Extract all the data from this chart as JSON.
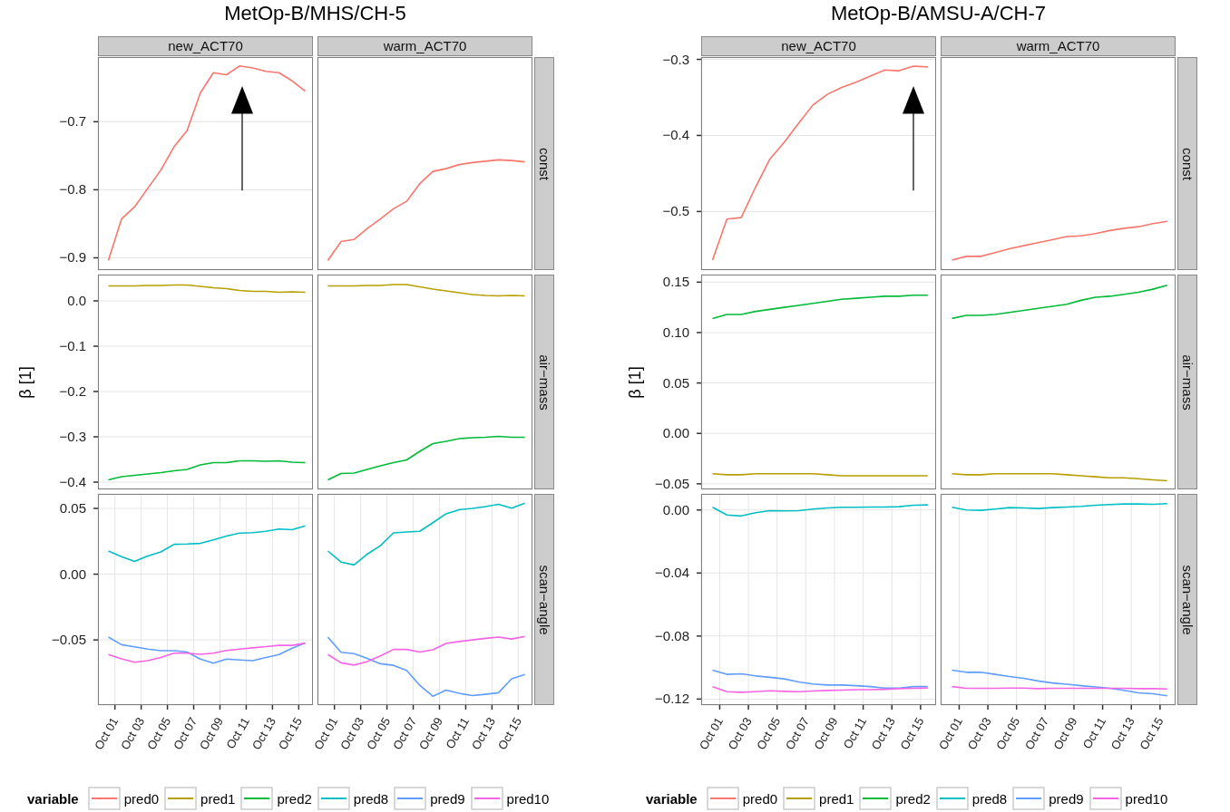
{
  "chart_data": [
    {
      "type": "line",
      "title": "new_ACT70",
      "annotations": [
        "MetOp-B/MHS/CH-5"
      ],
      "x": [
        "--09-30T12:00",
        "--10-01T12:00",
        "--10-02T12:00",
        "--10-03T12:00",
        "--10-04T12:00",
        "--10-05T12:00",
        "--10-06T12:00",
        "--10-07T12:00",
        "--10-08T12:00",
        "--10-09T12:00",
        "--10-10T12:00",
        "--10-11T12:00",
        "--10-12T12:00",
        "--10-13T12:00",
        "--10-14T12:00",
        "--10-15T12:00"
      ],
      "xlim": [
        "--09-29T17:00",
        "--10-16T02:00"
      ],
      "xticks": [
        {
          "value": "--10-01",
          "label": "Oct 01"
        },
        {
          "value": "--10-03",
          "label": "Oct 03"
        },
        {
          "value": "--10-05",
          "label": "Oct 05"
        },
        {
          "value": "--10-07",
          "label": "Oct 07"
        },
        {
          "value": "--10-09",
          "label": "Oct 09"
        },
        {
          "value": "--10-11",
          "label": "Oct 11"
        },
        {
          "value": "--10-13",
          "label": "Oct 13"
        },
        {
          "value": "--10-15",
          "label": "Oct 15"
        }
      ],
      "ylim": [
        -0.918,
        -0.605
      ],
      "yticks": [
        {
          "value": -0.9,
          "label": "−0.9"
        },
        {
          "value": -0.8,
          "label": "−0.8"
        },
        {
          "value": -0.7,
          "label": "−0.7"
        }
      ],
      "grid": true,
      "tick_labels": "y",
      "series": [
        {
          "name": "pred0",
          "color": "#f8766d",
          "values": [
            -0.904,
            -0.843,
            -0.825,
            -0.798,
            -0.771,
            -0.737,
            -0.713,
            -0.658,
            -0.628,
            -0.631,
            -0.618,
            -0.621,
            -0.626,
            -0.628,
            -0.64,
            -0.655
          ]
        }
      ],
      "legend": "bottom"
    },
    {
      "type": "line",
      "title": "warm_ACT70",
      "y2label": "const",
      "x": [
        "--09-30T12:00",
        "--10-01T12:00",
        "--10-02T12:00",
        "--10-03T12:00",
        "--10-04T12:00",
        "--10-05T12:00",
        "--10-06T12:00",
        "--10-07T12:00",
        "--10-08T12:00",
        "--10-09T12:00",
        "--10-10T12:00",
        "--10-11T12:00",
        "--10-12T12:00",
        "--10-13T12:00",
        "--10-14T12:00",
        "--10-15T12:00"
      ],
      "xlim": [
        "--09-29T17:00",
        "--10-16T02:00"
      ],
      "xticks": [
        {
          "value": "--10-01",
          "label": "Oct 01"
        },
        {
          "value": "--10-03",
          "label": "Oct 03"
        },
        {
          "value": "--10-05",
          "label": "Oct 05"
        },
        {
          "value": "--10-07",
          "label": "Oct 07"
        },
        {
          "value": "--10-09",
          "label": "Oct 09"
        },
        {
          "value": "--10-11",
          "label": "Oct 11"
        },
        {
          "value": "--10-13",
          "label": "Oct 13"
        },
        {
          "value": "--10-15",
          "label": "Oct 15"
        }
      ],
      "ylim": [
        -0.918,
        -0.605
      ],
      "yticks": [
        {
          "value": -0.9,
          "label": "−0.9"
        },
        {
          "value": -0.8,
          "label": "−0.8"
        },
        {
          "value": -0.7,
          "label": "−0.7"
        }
      ],
      "grid": true,
      "tick_labels": false,
      "series": [
        {
          "name": "pred0",
          "color": "#f8766d",
          "values": [
            -0.904,
            -0.876,
            -0.873,
            -0.857,
            -0.843,
            -0.828,
            -0.817,
            -0.791,
            -0.773,
            -0.769,
            -0.763,
            -0.76,
            -0.758,
            -0.756,
            -0.757,
            -0.759
          ]
        }
      ],
      "legend": "bottom"
    },
    {
      "type": "line",
      "ylabel": "β [1]",
      "x": [
        "--09-30T12:00",
        "--10-01T12:00",
        "--10-02T12:00",
        "--10-03T12:00",
        "--10-04T12:00",
        "--10-05T12:00",
        "--10-06T12:00",
        "--10-07T12:00",
        "--10-08T12:00",
        "--10-09T12:00",
        "--10-10T12:00",
        "--10-11T12:00",
        "--10-12T12:00",
        "--10-13T12:00",
        "--10-14T12:00",
        "--10-15T12:00"
      ],
      "xlim": [
        "--09-29T17:00",
        "--10-16T02:00"
      ],
      "xticks": [
        {
          "value": "--10-01",
          "label": "Oct 01"
        },
        {
          "value": "--10-03",
          "label": "Oct 03"
        },
        {
          "value": "--10-05",
          "label": "Oct 05"
        },
        {
          "value": "--10-07",
          "label": "Oct 07"
        },
        {
          "value": "--10-09",
          "label": "Oct 09"
        },
        {
          "value": "--10-11",
          "label": "Oct 11"
        },
        {
          "value": "--10-13",
          "label": "Oct 13"
        },
        {
          "value": "--10-15",
          "label": "Oct 15"
        }
      ],
      "ylim": [
        -0.416,
        0.058
      ],
      "yticks": [
        {
          "value": -0.4,
          "label": "−0.4"
        },
        {
          "value": -0.3,
          "label": "−0.3"
        },
        {
          "value": -0.2,
          "label": "−0.2"
        },
        {
          "value": -0.1,
          "label": "−0.1"
        },
        {
          "value": 0,
          "label": "0.0"
        }
      ],
      "grid": true,
      "tick_labels": "y",
      "series": [
        {
          "name": "pred1",
          "color": "#b79f00",
          "values": [
            0.033,
            0.033,
            0.033,
            0.034,
            0.034,
            0.035,
            0.035,
            0.032,
            0.029,
            0.027,
            0.023,
            0.021,
            0.021,
            0.019,
            0.02,
            0.019
          ]
        },
        {
          "name": "pred2",
          "color": "#00ba38",
          "values": [
            -0.395,
            -0.388,
            -0.385,
            -0.382,
            -0.379,
            -0.375,
            -0.372,
            -0.362,
            -0.357,
            -0.357,
            -0.353,
            -0.353,
            -0.354,
            -0.353,
            -0.356,
            -0.357
          ]
        }
      ],
      "legend": "bottom"
    },
    {
      "type": "line",
      "y2label": "air−mass",
      "x": [
        "--09-30T12:00",
        "--10-01T12:00",
        "--10-02T12:00",
        "--10-03T12:00",
        "--10-04T12:00",
        "--10-05T12:00",
        "--10-06T12:00",
        "--10-07T12:00",
        "--10-08T12:00",
        "--10-09T12:00",
        "--10-10T12:00",
        "--10-11T12:00",
        "--10-12T12:00",
        "--10-13T12:00",
        "--10-14T12:00",
        "--10-15T12:00"
      ],
      "xlim": [
        "--09-29T17:00",
        "--10-16T02:00"
      ],
      "xticks": [
        {
          "value": "--10-01",
          "label": "Oct 01"
        },
        {
          "value": "--10-03",
          "label": "Oct 03"
        },
        {
          "value": "--10-05",
          "label": "Oct 05"
        },
        {
          "value": "--10-07",
          "label": "Oct 07"
        },
        {
          "value": "--10-09",
          "label": "Oct 09"
        },
        {
          "value": "--10-11",
          "label": "Oct 11"
        },
        {
          "value": "--10-13",
          "label": "Oct 13"
        },
        {
          "value": "--10-15",
          "label": "Oct 15"
        }
      ],
      "ylim": [
        -0.416,
        0.058
      ],
      "yticks": [
        {
          "value": -0.4,
          "label": "−0.4"
        },
        {
          "value": -0.3,
          "label": "−0.3"
        },
        {
          "value": -0.2,
          "label": "−0.2"
        },
        {
          "value": -0.1,
          "label": "−0.1"
        },
        {
          "value": 0,
          "label": "0.0"
        }
      ],
      "grid": true,
      "tick_labels": false,
      "series": [
        {
          "name": "pred1",
          "color": "#b79f00",
          "values": [
            0.033,
            0.033,
            0.033,
            0.034,
            0.034,
            0.036,
            0.036,
            0.031,
            0.026,
            0.022,
            0.018,
            0.014,
            0.012,
            0.011,
            0.012,
            0.011
          ]
        },
        {
          "name": "pred2",
          "color": "#00ba38",
          "values": [
            -0.395,
            -0.381,
            -0.38,
            -0.372,
            -0.364,
            -0.357,
            -0.351,
            -0.332,
            -0.315,
            -0.31,
            -0.304,
            -0.302,
            -0.301,
            -0.299,
            -0.301,
            -0.301
          ]
        }
      ],
      "legend": "bottom"
    },
    {
      "type": "line",
      "legend": "bottom",
      "legend_title": "variable",
      "x": [
        "--09-30T12:00",
        "--10-01T12:00",
        "--10-02T12:00",
        "--10-03T12:00",
        "--10-04T12:00",
        "--10-05T12:00",
        "--10-06T12:00",
        "--10-07T12:00",
        "--10-08T12:00",
        "--10-09T12:00",
        "--10-10T12:00",
        "--10-11T12:00",
        "--10-12T12:00",
        "--10-13T12:00",
        "--10-14T12:00",
        "--10-15T12:00"
      ],
      "xlim": [
        "--09-29T17:00",
        "--10-16T02:00"
      ],
      "xticks": [
        {
          "value": "--10-01",
          "label": "Oct 01"
        },
        {
          "value": "--10-03",
          "label": "Oct 03"
        },
        {
          "value": "--10-05",
          "label": "Oct 05"
        },
        {
          "value": "--10-07",
          "label": "Oct 07"
        },
        {
          "value": "--10-09",
          "label": "Oct 09"
        },
        {
          "value": "--10-11",
          "label": "Oct 11"
        },
        {
          "value": "--10-13",
          "label": "Oct 13"
        },
        {
          "value": "--10-15",
          "label": "Oct 15"
        }
      ],
      "ylim": [
        -0.0995,
        0.061
      ],
      "yticks": [
        {
          "value": -0.05,
          "label": "−0.05"
        },
        {
          "value": 0,
          "label": "0.00"
        },
        {
          "value": 0.05,
          "label": "0.05"
        }
      ],
      "grid": true,
      "series": [
        {
          "name": "pred8",
          "color": "#00bfc4",
          "values": [
            0.0176,
            0.0133,
            0.0097,
            0.0138,
            0.0169,
            0.0227,
            0.0229,
            0.0234,
            0.0261,
            0.029,
            0.0312,
            0.0316,
            0.0326,
            0.0343,
            0.0338,
            0.0367
          ]
        },
        {
          "name": "pred9",
          "color": "#619cff",
          "values": [
            -0.0478,
            -0.0536,
            -0.0553,
            -0.057,
            -0.0582,
            -0.0582,
            -0.0592,
            -0.0645,
            -0.0676,
            -0.0645,
            -0.0652,
            -0.0657,
            -0.0633,
            -0.0611,
            -0.0563,
            -0.0524
          ]
        },
        {
          "name": "pred10",
          "color": "#f564e3",
          "values": [
            -0.0611,
            -0.0643,
            -0.0669,
            -0.0657,
            -0.0633,
            -0.0601,
            -0.0601,
            -0.0609,
            -0.0601,
            -0.058,
            -0.057,
            -0.056,
            -0.0551,
            -0.0541,
            -0.0541,
            -0.0524
          ]
        }
      ]
    },
    {
      "type": "line",
      "y2label": "scan−angle",
      "x": [
        "--09-30T12:00",
        "--10-01T12:00",
        "--10-02T12:00",
        "--10-03T12:00",
        "--10-04T12:00",
        "--10-05T12:00",
        "--10-06T12:00",
        "--10-07T12:00",
        "--10-08T12:00",
        "--10-09T12:00",
        "--10-10T12:00",
        "--10-11T12:00",
        "--10-12T12:00",
        "--10-13T12:00",
        "--10-14T12:00",
        "--10-15T12:00"
      ],
      "xlim": [
        "--09-29T17:00",
        "--10-16T02:00"
      ],
      "xticks": [
        {
          "value": "--10-01",
          "label": "Oct 01"
        },
        {
          "value": "--10-03",
          "label": "Oct 03"
        },
        {
          "value": "--10-05",
          "label": "Oct 05"
        },
        {
          "value": "--10-07",
          "label": "Oct 07"
        },
        {
          "value": "--10-09",
          "label": "Oct 09"
        },
        {
          "value": "--10-11",
          "label": "Oct 11"
        },
        {
          "value": "--10-13",
          "label": "Oct 13"
        },
        {
          "value": "--10-15",
          "label": "Oct 15"
        }
      ],
      "ylim": [
        -0.0995,
        0.061
      ],
      "yticks": [
        {
          "value": -0.05,
          "label": "−0.05"
        },
        {
          "value": 0,
          "label": "0.00"
        },
        {
          "value": 0.05,
          "label": "0.05"
        }
      ],
      "grid": true,
      "tick_labels": "x",
      "series": [
        {
          "name": "pred8",
          "color": "#00bfc4",
          "values": [
            0.0176,
            0.0092,
            0.007,
            0.0152,
            0.0217,
            0.0314,
            0.0321,
            0.0326,
            0.0391,
            0.0459,
            0.049,
            0.05,
            0.0514,
            0.0531,
            0.0502,
            0.0539
          ]
        },
        {
          "name": "pred9",
          "color": "#619cff",
          "values": [
            -0.0478,
            -0.0594,
            -0.0604,
            -0.064,
            -0.0681,
            -0.0693,
            -0.0732,
            -0.0845,
            -0.0928,
            -0.0882,
            -0.0906,
            -0.0923,
            -0.0913,
            -0.0901,
            -0.0795,
            -0.0763
          ]
        },
        {
          "name": "pred10",
          "color": "#f564e3",
          "values": [
            -0.0611,
            -0.0674,
            -0.0691,
            -0.0664,
            -0.0621,
            -0.0572,
            -0.0572,
            -0.0592,
            -0.0575,
            -0.0527,
            -0.0512,
            -0.05,
            -0.0488,
            -0.0478,
            -0.0493,
            -0.0473
          ]
        }
      ],
      "legend": "bottom"
    },
    {
      "type": "line",
      "title": "new_ACT70",
      "annotations": [
        "MetOp-B/AMSU-A/CH-7"
      ],
      "x": [
        "--09-30T12:00",
        "--10-01T12:00",
        "--10-02T12:00",
        "--10-03T12:00",
        "--10-04T12:00",
        "--10-05T12:00",
        "--10-06T12:00",
        "--10-07T12:00",
        "--10-08T12:00",
        "--10-09T12:00",
        "--10-10T12:00",
        "--10-11T12:00",
        "--10-12T12:00",
        "--10-13T12:00",
        "--10-14T12:00",
        "--10-15T12:00"
      ],
      "xlim": [
        "--09-29T17:00",
        "--10-16T02:00"
      ],
      "xticks": [
        {
          "value": "--10-01",
          "label": "Oct 01"
        },
        {
          "value": "--10-03",
          "label": "Oct 03"
        },
        {
          "value": "--10-05",
          "label": "Oct 05"
        },
        {
          "value": "--10-07",
          "label": "Oct 07"
        },
        {
          "value": "--10-09",
          "label": "Oct 09"
        },
        {
          "value": "--10-11",
          "label": "Oct 11"
        },
        {
          "value": "--10-13",
          "label": "Oct 13"
        },
        {
          "value": "--10-15",
          "label": "Oct 15"
        }
      ],
      "ylim": [
        -0.577,
        -0.297
      ],
      "yticks": [
        {
          "value": -0.5,
          "label": "−0.5"
        },
        {
          "value": -0.4,
          "label": "−0.4"
        },
        {
          "value": -0.3,
          "label": "−0.3"
        }
      ],
      "grid": true,
      "tick_labels": "y",
      "series": [
        {
          "name": "pred0",
          "color": "#f8766d",
          "values": [
            -0.564,
            -0.51,
            -0.508,
            -0.468,
            -0.431,
            -0.409,
            -0.384,
            -0.36,
            -0.346,
            -0.337,
            -0.33,
            -0.322,
            -0.314,
            -0.315,
            -0.309,
            -0.31
          ]
        }
      ],
      "legend": "bottom"
    },
    {
      "type": "line",
      "title": "warm_ACT70",
      "y2label": "const",
      "x": [
        "--09-30T12:00",
        "--10-01T12:00",
        "--10-02T12:00",
        "--10-03T12:00",
        "--10-04T12:00",
        "--10-05T12:00",
        "--10-06T12:00",
        "--10-07T12:00",
        "--10-08T12:00",
        "--10-09T12:00",
        "--10-10T12:00",
        "--10-11T12:00",
        "--10-12T12:00",
        "--10-13T12:00",
        "--10-14T12:00",
        "--10-15T12:00"
      ],
      "xlim": [
        "--09-29T17:00",
        "--10-16T02:00"
      ],
      "xticks": [
        {
          "value": "--10-01",
          "label": "Oct 01"
        },
        {
          "value": "--10-03",
          "label": "Oct 03"
        },
        {
          "value": "--10-05",
          "label": "Oct 05"
        },
        {
          "value": "--10-07",
          "label": "Oct 07"
        },
        {
          "value": "--10-09",
          "label": "Oct 09"
        },
        {
          "value": "--10-11",
          "label": "Oct 11"
        },
        {
          "value": "--10-13",
          "label": "Oct 13"
        },
        {
          "value": "--10-15",
          "label": "Oct 15"
        }
      ],
      "ylim": [
        -0.577,
        -0.297
      ],
      "yticks": [
        {
          "value": -0.5,
          "label": "−0.5"
        },
        {
          "value": -0.4,
          "label": "−0.4"
        },
        {
          "value": -0.3,
          "label": "−0.3"
        }
      ],
      "grid": true,
      "tick_labels": false,
      "series": [
        {
          "name": "pred0",
          "color": "#f8766d",
          "values": [
            -0.564,
            -0.559,
            -0.559,
            -0.554,
            -0.549,
            -0.545,
            -0.541,
            -0.537,
            -0.533,
            -0.532,
            -0.529,
            -0.525,
            -0.522,
            -0.52,
            -0.516,
            -0.513
          ]
        }
      ],
      "legend": "bottom"
    },
    {
      "type": "line",
      "ylabel": "β [1]",
      "x": [
        "--09-30T12:00",
        "--10-01T12:00",
        "--10-02T12:00",
        "--10-03T12:00",
        "--10-04T12:00",
        "--10-05T12:00",
        "--10-06T12:00",
        "--10-07T12:00",
        "--10-08T12:00",
        "--10-09T12:00",
        "--10-10T12:00",
        "--10-11T12:00",
        "--10-12T12:00",
        "--10-13T12:00",
        "--10-14T12:00",
        "--10-15T12:00"
      ],
      "xlim": [
        "--09-29T17:00",
        "--10-16T02:00"
      ],
      "xticks": [
        {
          "value": "--10-01",
          "label": "Oct 01"
        },
        {
          "value": "--10-03",
          "label": "Oct 03"
        },
        {
          "value": "--10-05",
          "label": "Oct 05"
        },
        {
          "value": "--10-07",
          "label": "Oct 07"
        },
        {
          "value": "--10-09",
          "label": "Oct 09"
        },
        {
          "value": "--10-11",
          "label": "Oct 11"
        },
        {
          "value": "--10-13",
          "label": "Oct 13"
        },
        {
          "value": "--10-15",
          "label": "Oct 15"
        }
      ],
      "ylim": [
        -0.0555,
        0.1575
      ],
      "yticks": [
        {
          "value": -0.05,
          "label": "−0.05"
        },
        {
          "value": 0,
          "label": "0.00"
        },
        {
          "value": 0.05,
          "label": "0.05"
        },
        {
          "value": 0.1,
          "label": "0.10"
        },
        {
          "value": 0.15,
          "label": "0.15"
        }
      ],
      "grid": true,
      "tick_labels": "y",
      "series": [
        {
          "name": "pred1",
          "color": "#b79f00",
          "values": [
            -0.04,
            -0.041,
            -0.041,
            -0.04,
            -0.04,
            -0.04,
            -0.04,
            -0.04,
            -0.041,
            -0.042,
            -0.042,
            -0.042,
            -0.042,
            -0.042,
            -0.042,
            -0.042
          ]
        },
        {
          "name": "pred2",
          "color": "#00ba38",
          "values": [
            0.114,
            0.118,
            0.118,
            0.121,
            0.123,
            0.125,
            0.127,
            0.129,
            0.131,
            0.133,
            0.134,
            0.135,
            0.136,
            0.136,
            0.137,
            0.137
          ]
        }
      ],
      "legend": "bottom"
    },
    {
      "type": "line",
      "y2label": "air−mass",
      "x": [
        "--09-30T12:00",
        "--10-01T12:00",
        "--10-02T12:00",
        "--10-03T12:00",
        "--10-04T12:00",
        "--10-05T12:00",
        "--10-06T12:00",
        "--10-07T12:00",
        "--10-08T12:00",
        "--10-09T12:00",
        "--10-10T12:00",
        "--10-11T12:00",
        "--10-12T12:00",
        "--10-13T12:00",
        "--10-14T12:00",
        "--10-15T12:00"
      ],
      "xlim": [
        "--09-29T17:00",
        "--10-16T02:00"
      ],
      "xticks": [
        {
          "value": "--10-01",
          "label": "Oct 01"
        },
        {
          "value": "--10-03",
          "label": "Oct 03"
        },
        {
          "value": "--10-05",
          "label": "Oct 05"
        },
        {
          "value": "--10-07",
          "label": "Oct 07"
        },
        {
          "value": "--10-09",
          "label": "Oct 09"
        },
        {
          "value": "--10-11",
          "label": "Oct 11"
        },
        {
          "value": "--10-13",
          "label": "Oct 13"
        },
        {
          "value": "--10-15",
          "label": "Oct 15"
        }
      ],
      "ylim": [
        -0.0555,
        0.1575
      ],
      "yticks": [
        {
          "value": -0.05,
          "label": "−0.05"
        },
        {
          "value": 0,
          "label": "0.00"
        },
        {
          "value": 0.05,
          "label": "0.05"
        },
        {
          "value": 0.1,
          "label": "0.10"
        },
        {
          "value": 0.15,
          "label": "0.15"
        }
      ],
      "grid": true,
      "tick_labels": false,
      "series": [
        {
          "name": "pred1",
          "color": "#b79f00",
          "values": [
            -0.04,
            -0.041,
            -0.041,
            -0.04,
            -0.04,
            -0.04,
            -0.04,
            -0.04,
            -0.041,
            -0.042,
            -0.043,
            -0.044,
            -0.044,
            -0.045,
            -0.046,
            -0.047
          ]
        },
        {
          "name": "pred2",
          "color": "#00ba38",
          "values": [
            0.114,
            0.117,
            0.117,
            0.118,
            0.12,
            0.122,
            0.124,
            0.126,
            0.128,
            0.132,
            0.135,
            0.136,
            0.138,
            0.14,
            0.143,
            0.147
          ]
        }
      ],
      "legend": "bottom"
    },
    {
      "type": "line",
      "legend": "bottom",
      "legend_title": "variable",
      "x": [
        "--09-30T12:00",
        "--10-01T12:00",
        "--10-02T12:00",
        "--10-03T12:00",
        "--10-04T12:00",
        "--10-05T12:00",
        "--10-06T12:00",
        "--10-07T12:00",
        "--10-08T12:00",
        "--10-09T12:00",
        "--10-10T12:00",
        "--10-11T12:00",
        "--10-12T12:00",
        "--10-13T12:00",
        "--10-14T12:00",
        "--10-15T12:00"
      ],
      "xlim": [
        "--09-29T17:00",
        "--10-16T02:00"
      ],
      "xticks": [
        {
          "value": "--10-01",
          "label": "Oct 01"
        },
        {
          "value": "--10-03",
          "label": "Oct 03"
        },
        {
          "value": "--10-05",
          "label": "Oct 05"
        },
        {
          "value": "--10-07",
          "label": "Oct 07"
        },
        {
          "value": "--10-09",
          "label": "Oct 09"
        },
        {
          "value": "--10-11",
          "label": "Oct 11"
        },
        {
          "value": "--10-13",
          "label": "Oct 13"
        },
        {
          "value": "--10-15",
          "label": "Oct 15"
        }
      ],
      "ylim": [
        -0.1238,
        0.0102
      ],
      "yticks": [
        {
          "value": -0.12,
          "label": "−0.12"
        },
        {
          "value": -0.08,
          "label": "−0.08"
        },
        {
          "value": -0.04,
          "label": "−0.04"
        },
        {
          "value": 0,
          "label": "0.00"
        }
      ],
      "grid": true,
      "series": [
        {
          "name": "pred8",
          "color": "#00bfc4",
          "values": [
            0.0017,
            -0.0032,
            -0.0038,
            -0.0017,
            -0.0004,
            -0.0006,
            -0.0004,
            0.0006,
            0.0013,
            0.0017,
            0.0017,
            0.0019,
            0.0019,
            0.0021,
            0.003,
            0.0032
          ]
        },
        {
          "name": "pred9",
          "color": "#619cff",
          "values": [
            -0.1017,
            -0.1043,
            -0.104,
            -0.1053,
            -0.1062,
            -0.1072,
            -0.1091,
            -0.1104,
            -0.1111,
            -0.1111,
            -0.1115,
            -0.1121,
            -0.113,
            -0.113,
            -0.1121,
            -0.1121
          ]
        },
        {
          "name": "pred10",
          "color": "#f564e3",
          "values": [
            -0.1121,
            -0.1153,
            -0.1157,
            -0.1153,
            -0.1147,
            -0.1151,
            -0.1153,
            -0.1149,
            -0.1145,
            -0.1143,
            -0.114,
            -0.114,
            -0.1138,
            -0.1134,
            -0.1132,
            -0.113
          ]
        }
      ]
    },
    {
      "type": "line",
      "y2label": "scan−angle",
      "x": [
        "--09-30T12:00",
        "--10-01T12:00",
        "--10-02T12:00",
        "--10-03T12:00",
        "--10-04T12:00",
        "--10-05T12:00",
        "--10-06T12:00",
        "--10-07T12:00",
        "--10-08T12:00",
        "--10-09T12:00",
        "--10-10T12:00",
        "--10-11T12:00",
        "--10-12T12:00",
        "--10-13T12:00",
        "--10-14T12:00",
        "--10-15T12:00"
      ],
      "xlim": [
        "--09-29T17:00",
        "--10-16T02:00"
      ],
      "xticks": [
        {
          "value": "--10-01",
          "label": "Oct 01"
        },
        {
          "value": "--10-03",
          "label": "Oct 03"
        },
        {
          "value": "--10-05",
          "label": "Oct 05"
        },
        {
          "value": "--10-07",
          "label": "Oct 07"
        },
        {
          "value": "--10-09",
          "label": "Oct 09"
        },
        {
          "value": "--10-11",
          "label": "Oct 11"
        },
        {
          "value": "--10-13",
          "label": "Oct 13"
        },
        {
          "value": "--10-15",
          "label": "Oct 15"
        }
      ],
      "ylim": [
        -0.1238,
        0.0102
      ],
      "yticks": [
        {
          "value": -0.12,
          "label": "−0.12"
        },
        {
          "value": -0.08,
          "label": "−0.08"
        },
        {
          "value": -0.04,
          "label": "−0.04"
        },
        {
          "value": 0,
          "label": "0.00"
        }
      ],
      "grid": true,
      "tick_labels": "x",
      "series": [
        {
          "name": "pred8",
          "color": "#00bfc4",
          "values": [
            0.0017,
            0,
            -0.0002,
            0.0006,
            0.0015,
            0.0013,
            0.0009,
            0.0015,
            0.0019,
            0.0023,
            0.003,
            0.0034,
            0.0038,
            0.0038,
            0.0036,
            0.004
          ]
        },
        {
          "name": "pred9",
          "color": "#619cff",
          "values": [
            -0.1017,
            -0.103,
            -0.103,
            -0.1043,
            -0.1057,
            -0.1068,
            -0.1085,
            -0.1098,
            -0.1106,
            -0.1115,
            -0.1123,
            -0.1132,
            -0.1145,
            -0.116,
            -0.1166,
            -0.1179
          ]
        },
        {
          "name": "pred10",
          "color": "#f564e3",
          "values": [
            -0.1121,
            -0.1132,
            -0.1132,
            -0.1132,
            -0.113,
            -0.113,
            -0.1134,
            -0.1132,
            -0.1132,
            -0.1132,
            -0.1132,
            -0.1132,
            -0.1132,
            -0.1134,
            -0.1134,
            -0.1136
          ]
        }
      ],
      "legend": "bottom"
    }
  ]
}
